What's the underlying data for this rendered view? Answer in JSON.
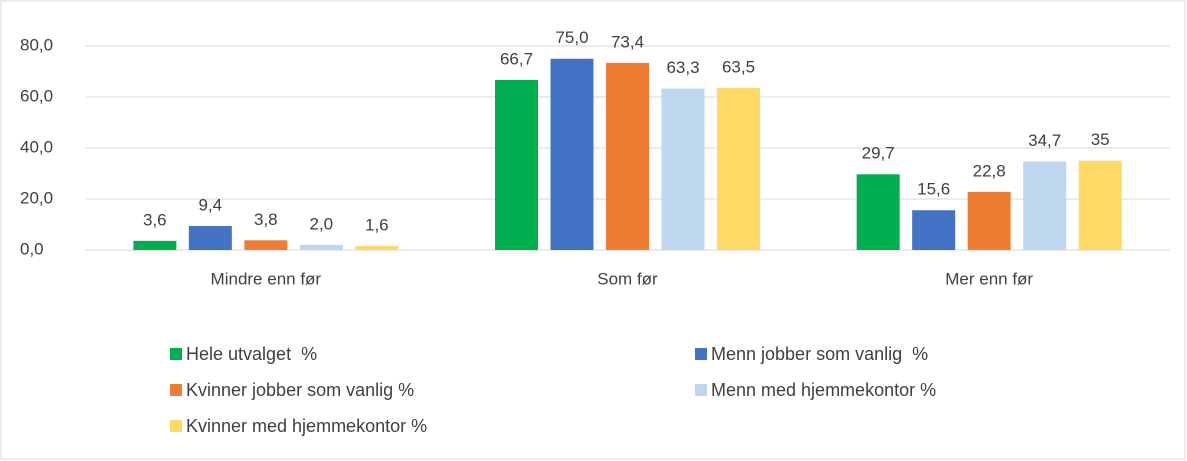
{
  "chart_data": {
    "type": "bar",
    "categories": [
      "Mindre enn før",
      "Som før",
      "Mer enn før"
    ],
    "series": [
      {
        "name": "Hele utvalget  %",
        "color": "#00b050",
        "values": [
          3.6,
          66.7,
          29.7
        ],
        "value_labels": [
          "3,6",
          "66,7",
          "29,7"
        ]
      },
      {
        "name": "Menn jobber som vanlig  %",
        "color": "#4472c4",
        "values": [
          9.4,
          75.0,
          15.6
        ],
        "value_labels": [
          "9,4",
          "75,0",
          "15,6"
        ]
      },
      {
        "name": "Kvinner jobber som vanlig %",
        "color": "#ed7d31",
        "values": [
          3.8,
          73.4,
          22.8
        ],
        "value_labels": [
          "3,8",
          "73,4",
          "22,8"
        ]
      },
      {
        "name": "Menn med hjemmekontor %",
        "color": "#bdd7ee",
        "values": [
          2.0,
          63.3,
          34.7
        ],
        "value_labels": [
          "2,0",
          "63,3",
          "34,7"
        ]
      },
      {
        "name": "Kvinner med hjemmekontor %",
        "color": "#ffd966",
        "values": [
          1.6,
          63.5,
          35
        ],
        "value_labels": [
          "1,6",
          "63,5",
          "35"
        ]
      }
    ],
    "ylim": [
      0,
      80
    ],
    "yticks": [
      {
        "value": 0,
        "label": "0,0"
      },
      {
        "value": 20,
        "label": "20,0"
      },
      {
        "value": 40,
        "label": "40,0"
      },
      {
        "value": 60,
        "label": "60,0"
      },
      {
        "value": 80,
        "label": "80,0"
      }
    ],
    "grid": true,
    "legend": "bottom"
  }
}
